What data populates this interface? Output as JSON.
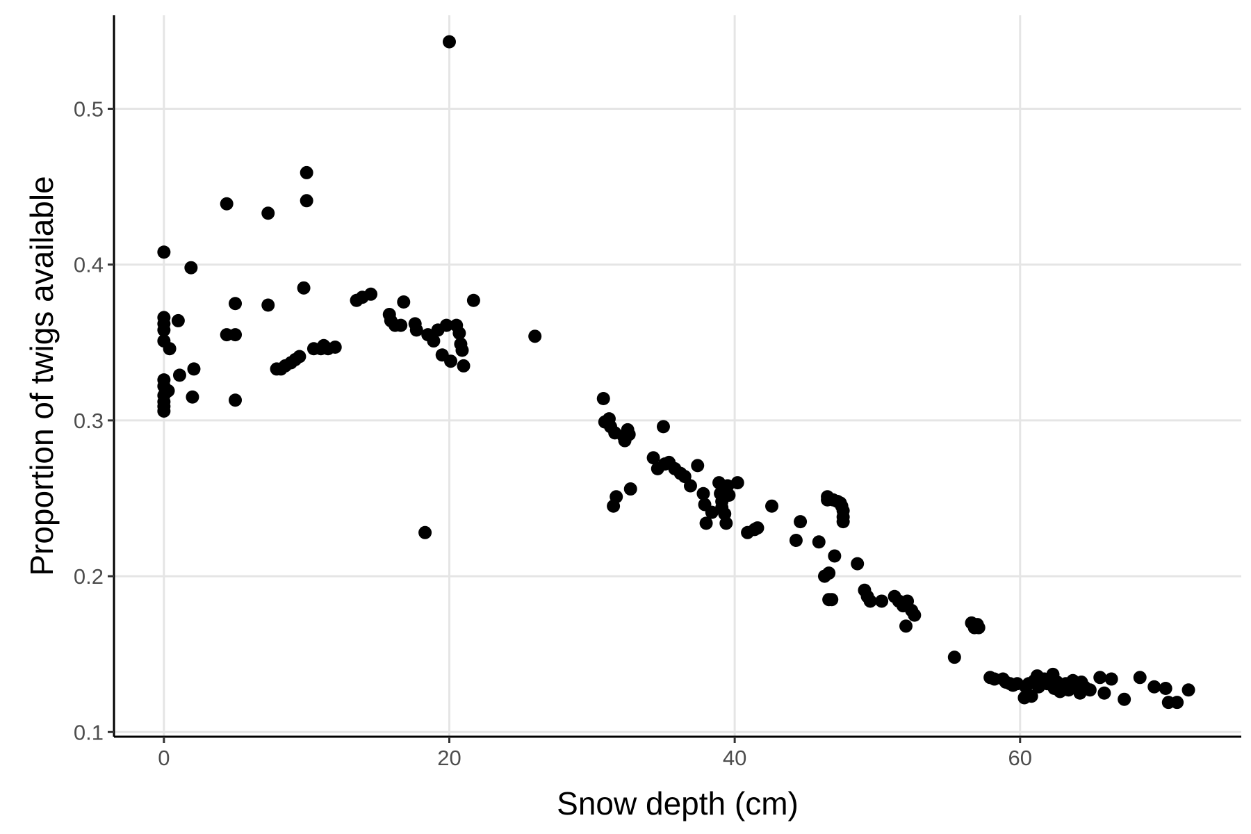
{
  "chart_data": {
    "type": "scatter",
    "title": "",
    "xlabel": "Snow depth (cm)",
    "ylabel": "Proportion of twigs available",
    "xlim": [
      -3.5,
      75.5
    ],
    "ylim": [
      0.097,
      0.56
    ],
    "x_ticks": [
      0,
      20,
      40,
      60
    ],
    "x_tick_labels": [
      "0",
      "20",
      "40",
      "60"
    ],
    "y_ticks": [
      0.1,
      0.2,
      0.3,
      0.4,
      0.5
    ],
    "y_tick_labels": [
      "0.1",
      "0.2",
      "0.3",
      "0.4",
      "0.5"
    ],
    "grid": true,
    "point_color": "#000000",
    "points": [
      [
        0.0,
        0.408
      ],
      [
        0.0,
        0.366
      ],
      [
        0.0,
        0.362
      ],
      [
        0.0,
        0.358
      ],
      [
        0.0,
        0.351
      ],
      [
        0.0,
        0.326
      ],
      [
        0.0,
        0.322
      ],
      [
        0.0,
        0.316
      ],
      [
        0.0,
        0.312
      ],
      [
        0.0,
        0.309
      ],
      [
        0.0,
        0.306
      ],
      [
        0.3,
        0.319
      ],
      [
        0.4,
        0.346
      ],
      [
        1.0,
        0.364
      ],
      [
        1.1,
        0.329
      ],
      [
        1.9,
        0.398
      ],
      [
        2.0,
        0.315
      ],
      [
        2.1,
        0.333
      ],
      [
        4.4,
        0.439
      ],
      [
        4.4,
        0.355
      ],
      [
        5.0,
        0.375
      ],
      [
        5.0,
        0.355
      ],
      [
        5.0,
        0.313
      ],
      [
        7.3,
        0.433
      ],
      [
        7.3,
        0.374
      ],
      [
        7.9,
        0.333
      ],
      [
        8.2,
        0.333
      ],
      [
        8.5,
        0.335
      ],
      [
        8.9,
        0.337
      ],
      [
        9.2,
        0.339
      ],
      [
        9.5,
        0.341
      ],
      [
        9.8,
        0.385
      ],
      [
        10.0,
        0.459
      ],
      [
        10.0,
        0.441
      ],
      [
        10.5,
        0.346
      ],
      [
        11.0,
        0.346
      ],
      [
        11.2,
        0.348
      ],
      [
        11.5,
        0.346
      ],
      [
        12.0,
        0.347
      ],
      [
        13.5,
        0.377
      ],
      [
        13.9,
        0.379
      ],
      [
        14.5,
        0.381
      ],
      [
        15.8,
        0.368
      ],
      [
        15.9,
        0.364
      ],
      [
        16.2,
        0.361
      ],
      [
        16.6,
        0.361
      ],
      [
        16.8,
        0.376
      ],
      [
        17.6,
        0.362
      ],
      [
        17.7,
        0.358
      ],
      [
        18.3,
        0.228
      ],
      [
        18.5,
        0.355
      ],
      [
        18.9,
        0.351
      ],
      [
        19.2,
        0.358
      ],
      [
        19.5,
        0.342
      ],
      [
        19.8,
        0.361
      ],
      [
        20.0,
        0.543
      ],
      [
        20.1,
        0.338
      ],
      [
        20.5,
        0.361
      ],
      [
        20.7,
        0.356
      ],
      [
        20.8,
        0.349
      ],
      [
        20.9,
        0.345
      ],
      [
        21.0,
        0.335
      ],
      [
        21.7,
        0.377
      ],
      [
        26.0,
        0.354
      ],
      [
        30.8,
        0.314
      ],
      [
        30.9,
        0.299
      ],
      [
        31.2,
        0.301
      ],
      [
        31.3,
        0.296
      ],
      [
        31.5,
        0.245
      ],
      [
        31.6,
        0.292
      ],
      [
        31.7,
        0.251
      ],
      [
        32.2,
        0.29
      ],
      [
        32.3,
        0.287
      ],
      [
        32.5,
        0.294
      ],
      [
        32.6,
        0.291
      ],
      [
        32.7,
        0.256
      ],
      [
        34.3,
        0.276
      ],
      [
        34.6,
        0.269
      ],
      [
        35.0,
        0.296
      ],
      [
        35.1,
        0.272
      ],
      [
        35.4,
        0.273
      ],
      [
        35.8,
        0.269
      ],
      [
        36.2,
        0.266
      ],
      [
        36.5,
        0.264
      ],
      [
        36.9,
        0.258
      ],
      [
        37.4,
        0.271
      ],
      [
        37.8,
        0.253
      ],
      [
        37.9,
        0.246
      ],
      [
        38.0,
        0.234
      ],
      [
        38.4,
        0.241
      ],
      [
        38.9,
        0.26
      ],
      [
        39.0,
        0.253
      ],
      [
        39.1,
        0.248
      ],
      [
        39.1,
        0.244
      ],
      [
        39.3,
        0.24
      ],
      [
        39.4,
        0.234
      ],
      [
        39.5,
        0.258
      ],
      [
        39.6,
        0.252
      ],
      [
        40.2,
        0.26
      ],
      [
        40.9,
        0.228
      ],
      [
        41.4,
        0.23
      ],
      [
        41.6,
        0.231
      ],
      [
        42.6,
        0.245
      ],
      [
        44.3,
        0.223
      ],
      [
        44.6,
        0.235
      ],
      [
        45.9,
        0.222
      ],
      [
        46.3,
        0.2
      ],
      [
        46.5,
        0.251
      ],
      [
        46.5,
        0.249
      ],
      [
        46.6,
        0.202
      ],
      [
        46.6,
        0.185
      ],
      [
        46.8,
        0.185
      ],
      [
        46.9,
        0.249
      ],
      [
        47.0,
        0.213
      ],
      [
        47.2,
        0.248
      ],
      [
        47.4,
        0.247
      ],
      [
        47.5,
        0.245
      ],
      [
        47.6,
        0.242
      ],
      [
        47.6,
        0.238
      ],
      [
        47.6,
        0.235
      ],
      [
        48.6,
        0.208
      ],
      [
        49.1,
        0.191
      ],
      [
        49.3,
        0.187
      ],
      [
        49.5,
        0.184
      ],
      [
        50.3,
        0.184
      ],
      [
        51.2,
        0.187
      ],
      [
        51.5,
        0.184
      ],
      [
        51.8,
        0.181
      ],
      [
        52.0,
        0.168
      ],
      [
        52.1,
        0.184
      ],
      [
        52.4,
        0.178
      ],
      [
        52.6,
        0.175
      ],
      [
        55.4,
        0.148
      ],
      [
        56.6,
        0.17
      ],
      [
        56.8,
        0.167
      ],
      [
        57.0,
        0.169
      ],
      [
        57.1,
        0.167
      ],
      [
        57.9,
        0.135
      ],
      [
        58.2,
        0.134
      ],
      [
        58.8,
        0.134
      ],
      [
        59.0,
        0.132
      ],
      [
        59.3,
        0.131
      ],
      [
        59.5,
        0.13
      ],
      [
        59.8,
        0.131
      ],
      [
        60.3,
        0.122
      ],
      [
        60.4,
        0.129
      ],
      [
        60.6,
        0.131
      ],
      [
        60.8,
        0.123
      ],
      [
        61.0,
        0.133
      ],
      [
        61.2,
        0.136
      ],
      [
        61.3,
        0.129
      ],
      [
        61.7,
        0.134
      ],
      [
        61.9,
        0.131
      ],
      [
        62.3,
        0.137
      ],
      [
        62.4,
        0.128
      ],
      [
        62.6,
        0.132
      ],
      [
        62.8,
        0.126
      ],
      [
        63.0,
        0.13
      ],
      [
        63.2,
        0.131
      ],
      [
        63.4,
        0.127
      ],
      [
        63.7,
        0.133
      ],
      [
        64.0,
        0.129
      ],
      [
        64.2,
        0.125
      ],
      [
        64.3,
        0.132
      ],
      [
        64.5,
        0.129
      ],
      [
        64.9,
        0.127
      ],
      [
        65.6,
        0.135
      ],
      [
        65.9,
        0.125
      ],
      [
        66.4,
        0.134
      ],
      [
        67.3,
        0.121
      ],
      [
        68.4,
        0.135
      ],
      [
        69.4,
        0.129
      ],
      [
        70.2,
        0.128
      ],
      [
        70.4,
        0.119
      ],
      [
        71.0,
        0.119
      ],
      [
        71.8,
        0.127
      ]
    ]
  }
}
